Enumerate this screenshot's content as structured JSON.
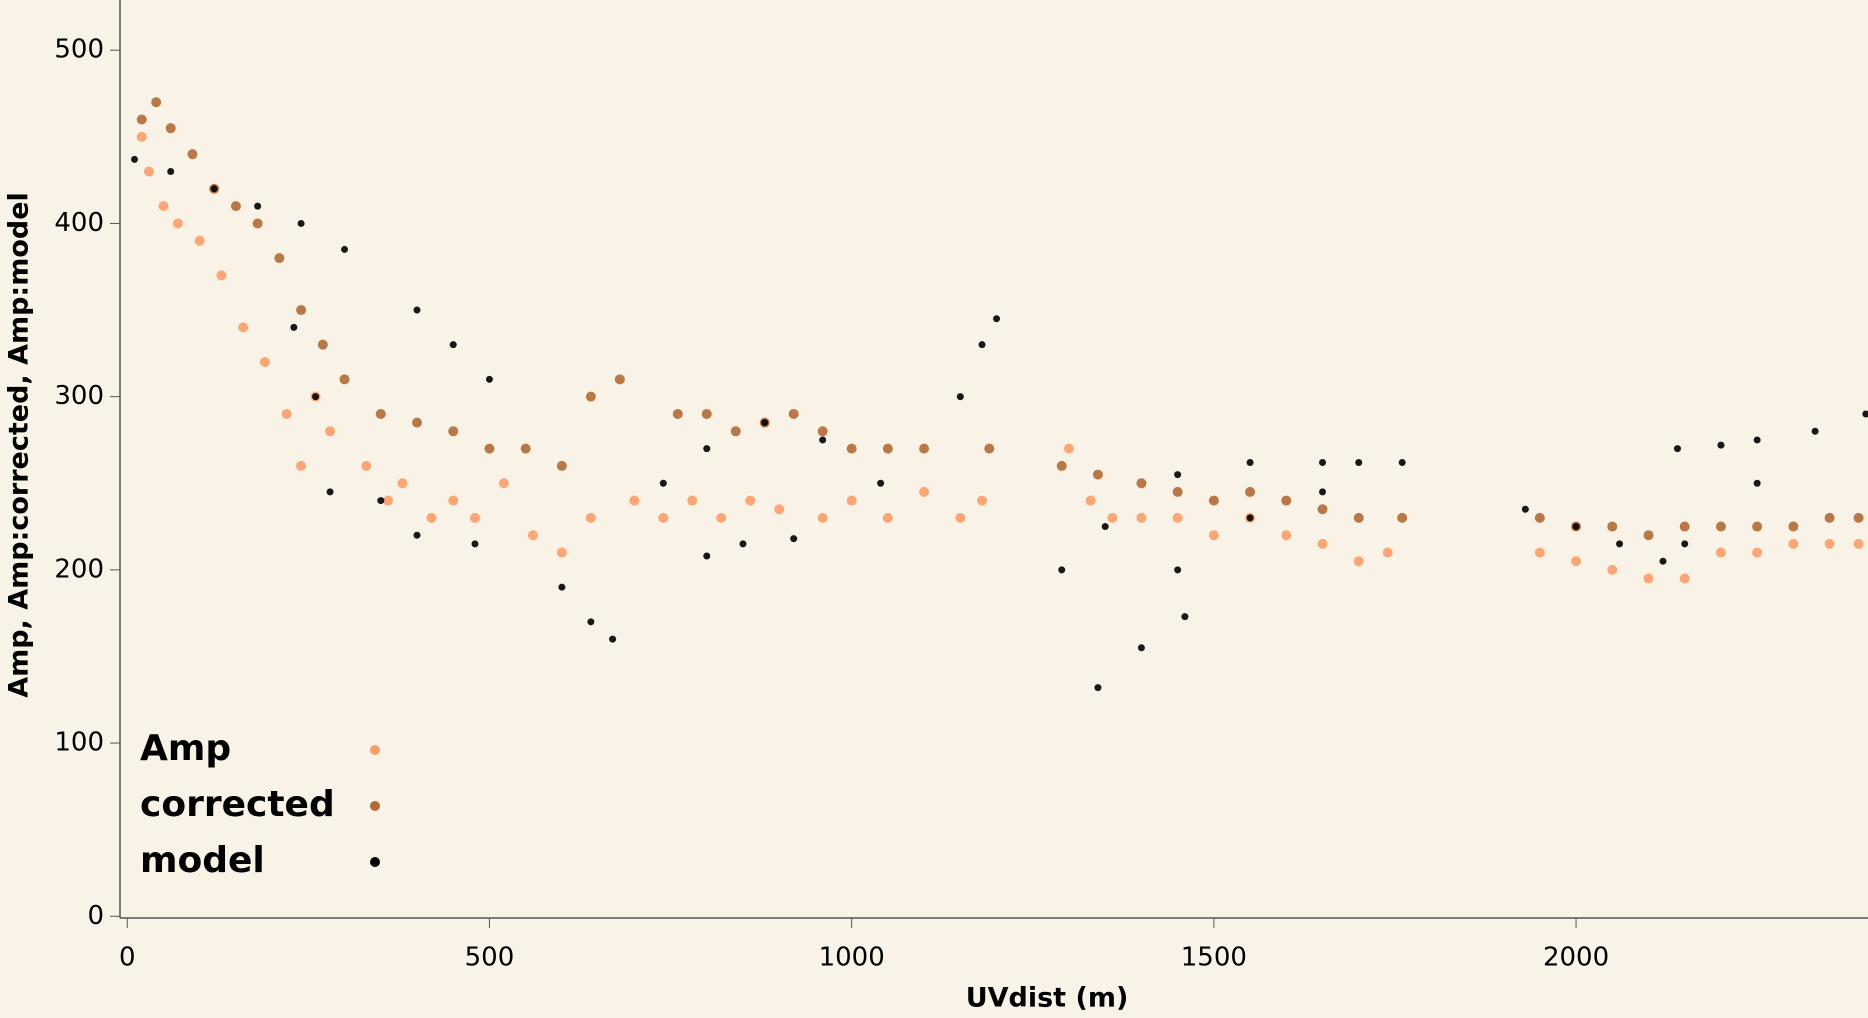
{
  "chart_data": {
    "type": "scatter",
    "xlabel": "UVdist (m)",
    "ylabel": "Amp, Amp:corrected, Amp:model",
    "xlim": [
      -10,
      2403
    ],
    "ylim": [
      -1,
      529
    ],
    "xticks": [
      0,
      500,
      1000,
      1500,
      2000
    ],
    "yticks": [
      0,
      100,
      200,
      300,
      400,
      500
    ],
    "legend": "lower left",
    "series": [
      {
        "name": "Amp",
        "color": "#fb9d6a",
        "x": [
          20,
          30,
          50,
          70,
          100,
          130,
          160,
          190,
          220,
          240,
          260,
          280,
          330,
          360,
          380,
          420,
          450,
          480,
          520,
          560,
          600,
          640,
          700,
          740,
          780,
          820,
          860,
          900,
          960,
          1000,
          1050,
          1100,
          1150,
          1180,
          1300,
          1330,
          1360,
          1400,
          1450,
          1500,
          1550,
          1600,
          1650,
          1700,
          1740,
          1950,
          2000,
          2050,
          2100,
          2150,
          2200,
          2250,
          2300,
          2350,
          2390
        ],
        "y": [
          450,
          430,
          410,
          400,
          390,
          370,
          340,
          320,
          290,
          260,
          300,
          280,
          260,
          240,
          250,
          230,
          240,
          230,
          250,
          220,
          210,
          230,
          240,
          230,
          240,
          230,
          240,
          235,
          230,
          240,
          230,
          245,
          230,
          240,
          270,
          240,
          230,
          230,
          230,
          220,
          230,
          220,
          215,
          205,
          210,
          210,
          205,
          200,
          195,
          195,
          210,
          210,
          215,
          215,
          215
        ]
      },
      {
        "name": "corrected",
        "color": "#b06a36",
        "x": [
          20,
          40,
          60,
          90,
          120,
          150,
          180,
          210,
          240,
          270,
          300,
          350,
          400,
          450,
          500,
          550,
          600,
          640,
          680,
          760,
          800,
          840,
          880,
          920,
          960,
          1000,
          1050,
          1100,
          1190,
          1290,
          1340,
          1400,
          1450,
          1500,
          1550,
          1600,
          1650,
          1700,
          1760,
          1950,
          2000,
          2050,
          2100,
          2150,
          2200,
          2250,
          2300,
          2350,
          2390
        ],
        "y": [
          460,
          470,
          455,
          440,
          420,
          410,
          400,
          380,
          350,
          330,
          310,
          290,
          285,
          280,
          270,
          270,
          260,
          300,
          310,
          290,
          290,
          280,
          285,
          290,
          280,
          270,
          270,
          270,
          270,
          260,
          255,
          250,
          245,
          240,
          245,
          240,
          235,
          230,
          230,
          230,
          225,
          225,
          220,
          225,
          225,
          225,
          225,
          230,
          230
        ]
      },
      {
        "name": "model",
        "color": "#000000",
        "x": [
          10,
          60,
          120,
          180,
          240,
          300,
          230,
          260,
          280,
          400,
          450,
          500,
          350,
          400,
          480,
          600,
          640,
          670,
          740,
          800,
          880,
          960,
          1040,
          800,
          850,
          920,
          1150,
          1180,
          1200,
          1290,
          1350,
          1450,
          1550,
          1650,
          1700,
          1340,
          1400,
          1460,
          1450,
          1550,
          1650,
          1760,
          1930,
          2000,
          2060,
          2120,
          2140,
          2200,
          2250,
          2150,
          2250,
          2330,
          2400
        ],
        "y": [
          437,
          430,
          420,
          410,
          400,
          385,
          340,
          300,
          245,
          350,
          330,
          310,
          240,
          220,
          215,
          190,
          170,
          160,
          250,
          270,
          285,
          275,
          250,
          208,
          215,
          218,
          300,
          330,
          345,
          200,
          225,
          255,
          262,
          262,
          262,
          132,
          155,
          173,
          200,
          230,
          245,
          262,
          235,
          225,
          215,
          205,
          270,
          272,
          275,
          215,
          250,
          280,
          290
        ]
      }
    ]
  }
}
